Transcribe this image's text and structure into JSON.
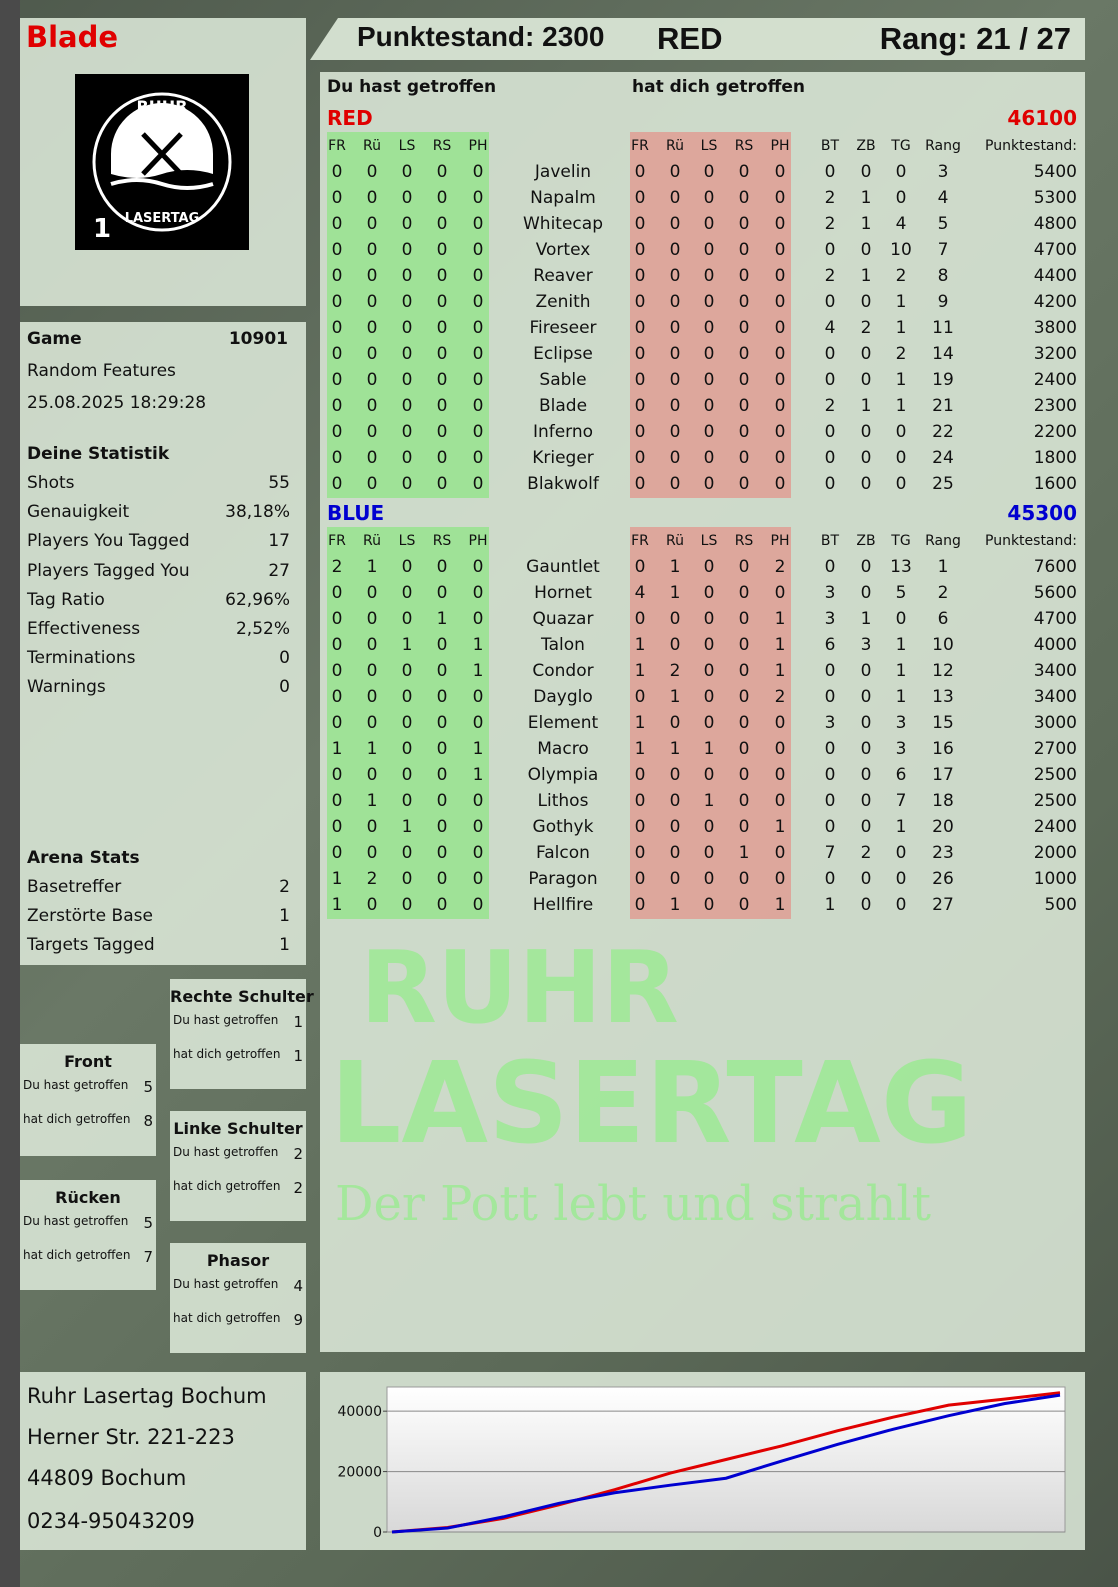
{
  "player": {
    "name": "Blade",
    "score_label": "Punktestand: 2300",
    "team": "RED",
    "rank_label": "Rang: 21 / 27"
  },
  "logo": {
    "text_top": "RUHR",
    "text_bottom": "LASERTAG",
    "number": "1"
  },
  "watermark": {
    "line1": "RUHR",
    "line2": "LASERTAG",
    "tagline": "Der Pott lebt und strahlt"
  },
  "headers": {
    "you_hit": "Du hast getroffen",
    "hit_you": "hat dich getroffen"
  },
  "columns": {
    "hit": [
      "FR",
      "Rü",
      "LS",
      "RS",
      "PH"
    ],
    "stats": [
      "BT",
      "ZB",
      "TG",
      "Rang"
    ],
    "score": "Punktestand:"
  },
  "colors": {
    "red": "#e00000",
    "blue": "#0000d0",
    "green_band": "#8ce682",
    "red_band": "#e1968c"
  },
  "teams": [
    {
      "name": "RED",
      "total": "46100",
      "color": "#e00000",
      "players": [
        {
          "name": "Javelin",
          "you": [
            0,
            0,
            0,
            0,
            0
          ],
          "them": [
            0,
            0,
            0,
            0,
            0
          ],
          "stats": [
            0,
            0,
            0,
            3
          ],
          "score": "5400"
        },
        {
          "name": "Napalm",
          "you": [
            0,
            0,
            0,
            0,
            0
          ],
          "them": [
            0,
            0,
            0,
            0,
            0
          ],
          "stats": [
            2,
            1,
            0,
            4
          ],
          "score": "5300"
        },
        {
          "name": "Whitecap",
          "you": [
            0,
            0,
            0,
            0,
            0
          ],
          "them": [
            0,
            0,
            0,
            0,
            0
          ],
          "stats": [
            2,
            1,
            4,
            5
          ],
          "score": "4800"
        },
        {
          "name": "Vortex",
          "you": [
            0,
            0,
            0,
            0,
            0
          ],
          "them": [
            0,
            0,
            0,
            0,
            0
          ],
          "stats": [
            0,
            0,
            10,
            7
          ],
          "score": "4700"
        },
        {
          "name": "Reaver",
          "you": [
            0,
            0,
            0,
            0,
            0
          ],
          "them": [
            0,
            0,
            0,
            0,
            0
          ],
          "stats": [
            2,
            1,
            2,
            8
          ],
          "score": "4400"
        },
        {
          "name": "Zenith",
          "you": [
            0,
            0,
            0,
            0,
            0
          ],
          "them": [
            0,
            0,
            0,
            0,
            0
          ],
          "stats": [
            0,
            0,
            1,
            9
          ],
          "score": "4200"
        },
        {
          "name": "Fireseer",
          "you": [
            0,
            0,
            0,
            0,
            0
          ],
          "them": [
            0,
            0,
            0,
            0,
            0
          ],
          "stats": [
            4,
            2,
            1,
            11
          ],
          "score": "3800"
        },
        {
          "name": "Eclipse",
          "you": [
            0,
            0,
            0,
            0,
            0
          ],
          "them": [
            0,
            0,
            0,
            0,
            0
          ],
          "stats": [
            0,
            0,
            2,
            14
          ],
          "score": "3200"
        },
        {
          "name": "Sable",
          "you": [
            0,
            0,
            0,
            0,
            0
          ],
          "them": [
            0,
            0,
            0,
            0,
            0
          ],
          "stats": [
            0,
            0,
            1,
            19
          ],
          "score": "2400"
        },
        {
          "name": "Blade",
          "you": [
            0,
            0,
            0,
            0,
            0
          ],
          "them": [
            0,
            0,
            0,
            0,
            0
          ],
          "stats": [
            2,
            1,
            1,
            21
          ],
          "score": "2300"
        },
        {
          "name": "Inferno",
          "you": [
            0,
            0,
            0,
            0,
            0
          ],
          "them": [
            0,
            0,
            0,
            0,
            0
          ],
          "stats": [
            0,
            0,
            0,
            22
          ],
          "score": "2200"
        },
        {
          "name": "Krieger",
          "you": [
            0,
            0,
            0,
            0,
            0
          ],
          "them": [
            0,
            0,
            0,
            0,
            0
          ],
          "stats": [
            0,
            0,
            0,
            24
          ],
          "score": "1800"
        },
        {
          "name": "Blakwolf",
          "you": [
            0,
            0,
            0,
            0,
            0
          ],
          "them": [
            0,
            0,
            0,
            0,
            0
          ],
          "stats": [
            0,
            0,
            0,
            25
          ],
          "score": "1600"
        }
      ]
    },
    {
      "name": "BLUE",
      "total": "45300",
      "color": "#0000d0",
      "players": [
        {
          "name": "Gauntlet",
          "you": [
            2,
            1,
            0,
            0,
            0
          ],
          "them": [
            0,
            1,
            0,
            0,
            2
          ],
          "stats": [
            0,
            0,
            13,
            1
          ],
          "score": "7600"
        },
        {
          "name": "Hornet",
          "you": [
            0,
            0,
            0,
            0,
            0
          ],
          "them": [
            4,
            1,
            0,
            0,
            0
          ],
          "stats": [
            3,
            0,
            5,
            2
          ],
          "score": "5600"
        },
        {
          "name": "Quazar",
          "you": [
            0,
            0,
            0,
            1,
            0
          ],
          "them": [
            0,
            0,
            0,
            0,
            1
          ],
          "stats": [
            3,
            1,
            0,
            6
          ],
          "score": "4700"
        },
        {
          "name": "Talon",
          "you": [
            0,
            0,
            1,
            0,
            1
          ],
          "them": [
            1,
            0,
            0,
            0,
            1
          ],
          "stats": [
            6,
            3,
            1,
            10
          ],
          "score": "4000"
        },
        {
          "name": "Condor",
          "you": [
            0,
            0,
            0,
            0,
            1
          ],
          "them": [
            1,
            2,
            0,
            0,
            1
          ],
          "stats": [
            0,
            0,
            1,
            12
          ],
          "score": "3400"
        },
        {
          "name": "Dayglo",
          "you": [
            0,
            0,
            0,
            0,
            0
          ],
          "them": [
            0,
            1,
            0,
            0,
            2
          ],
          "stats": [
            0,
            0,
            1,
            13
          ],
          "score": "3400"
        },
        {
          "name": "Element",
          "you": [
            0,
            0,
            0,
            0,
            0
          ],
          "them": [
            1,
            0,
            0,
            0,
            0
          ],
          "stats": [
            3,
            0,
            3,
            15
          ],
          "score": "3000"
        },
        {
          "name": "Macro",
          "you": [
            1,
            1,
            0,
            0,
            1
          ],
          "them": [
            1,
            1,
            1,
            0,
            0
          ],
          "stats": [
            0,
            0,
            3,
            16
          ],
          "score": "2700"
        },
        {
          "name": "Olympia",
          "you": [
            0,
            0,
            0,
            0,
            1
          ],
          "them": [
            0,
            0,
            0,
            0,
            0
          ],
          "stats": [
            0,
            0,
            6,
            17
          ],
          "score": "2500"
        },
        {
          "name": "Lithos",
          "you": [
            0,
            1,
            0,
            0,
            0
          ],
          "them": [
            0,
            0,
            1,
            0,
            0
          ],
          "stats": [
            0,
            0,
            7,
            18
          ],
          "score": "2500"
        },
        {
          "name": "Gothyk",
          "you": [
            0,
            0,
            1,
            0,
            0
          ],
          "them": [
            0,
            0,
            0,
            0,
            1
          ],
          "stats": [
            0,
            0,
            1,
            20
          ],
          "score": "2400"
        },
        {
          "name": "Falcon",
          "you": [
            0,
            0,
            0,
            0,
            0
          ],
          "them": [
            0,
            0,
            0,
            1,
            0
          ],
          "stats": [
            7,
            2,
            0,
            23
          ],
          "score": "2000"
        },
        {
          "name": "Paragon",
          "you": [
            1,
            2,
            0,
            0,
            0
          ],
          "them": [
            0,
            0,
            0,
            0,
            0
          ],
          "stats": [
            0,
            0,
            0,
            26
          ],
          "score": "1000"
        },
        {
          "name": "Hellfire",
          "you": [
            1,
            0,
            0,
            0,
            0
          ],
          "them": [
            0,
            1,
            0,
            0,
            1
          ],
          "stats": [
            1,
            0,
            0,
            27
          ],
          "score": "500"
        }
      ]
    }
  ],
  "game": {
    "label": "Game",
    "id": "10901",
    "mode": "Random Features",
    "datetime": "25.08.2025 18:29:28"
  },
  "stats": {
    "title": "Deine Statistik",
    "items": [
      {
        "label": "Shots",
        "value": "55"
      },
      {
        "label": "Genauigkeit",
        "value": "38,18%"
      },
      {
        "label": "Players You Tagged",
        "value": "17"
      },
      {
        "label": "Players Tagged You",
        "value": "27"
      },
      {
        "label": "Tag Ratio",
        "value": "62,96%"
      },
      {
        "label": "Effectiveness",
        "value": "2,52%"
      },
      {
        "label": "Terminations",
        "value": "0"
      },
      {
        "label": "Warnings",
        "value": "0"
      }
    ]
  },
  "arena": {
    "title": "Arena Stats",
    "items": [
      {
        "label": "Basetreffer",
        "value": "2"
      },
      {
        "label": "Zerstörte Base",
        "value": "1"
      },
      {
        "label": "Targets Tagged",
        "value": "1"
      }
    ]
  },
  "body_parts": [
    {
      "title": "Rechte Schulter",
      "you_label": "Du hast getroffen",
      "you": "1",
      "them_label": "hat dich getroffen",
      "them": "1"
    },
    {
      "title": "Front",
      "you_label": "Du hast getroffen",
      "you": "5",
      "them_label": "hat dich getroffen",
      "them": "8"
    },
    {
      "title": "Linke Schulter",
      "you_label": "Du hast getroffen",
      "you": "2",
      "them_label": "hat dich getroffen",
      "them": "2"
    },
    {
      "title": "Rücken",
      "you_label": "Du hast getroffen",
      "you": "5",
      "them_label": "hat dich getroffen",
      "them": "7"
    },
    {
      "title": "Phasor",
      "you_label": "Du hast getroffen",
      "you": "4",
      "them_label": "hat dich getroffen",
      "them": "9"
    }
  ],
  "address": {
    "name": "Ruhr Lasertag Bochum",
    "street": "Herner Str. 221-223",
    "city": "44809 Bochum",
    "phone": "0234-95043209"
  },
  "chart_data": {
    "type": "line",
    "ylim": [
      0,
      48000
    ],
    "yticks": [
      "0",
      "20000",
      "40000"
    ],
    "grid": true,
    "series": [
      {
        "color": "#e00000",
        "values": [
          0,
          1500,
          4500,
          9000,
          14000,
          19500,
          24000,
          28500,
          33500,
          38000,
          42000,
          44000,
          46100
        ]
      },
      {
        "color": "#0000d0",
        "values": [
          0,
          1300,
          5000,
          9500,
          13000,
          15500,
          17800,
          23500,
          29000,
          34000,
          38500,
          42500,
          45300
        ]
      }
    ]
  }
}
